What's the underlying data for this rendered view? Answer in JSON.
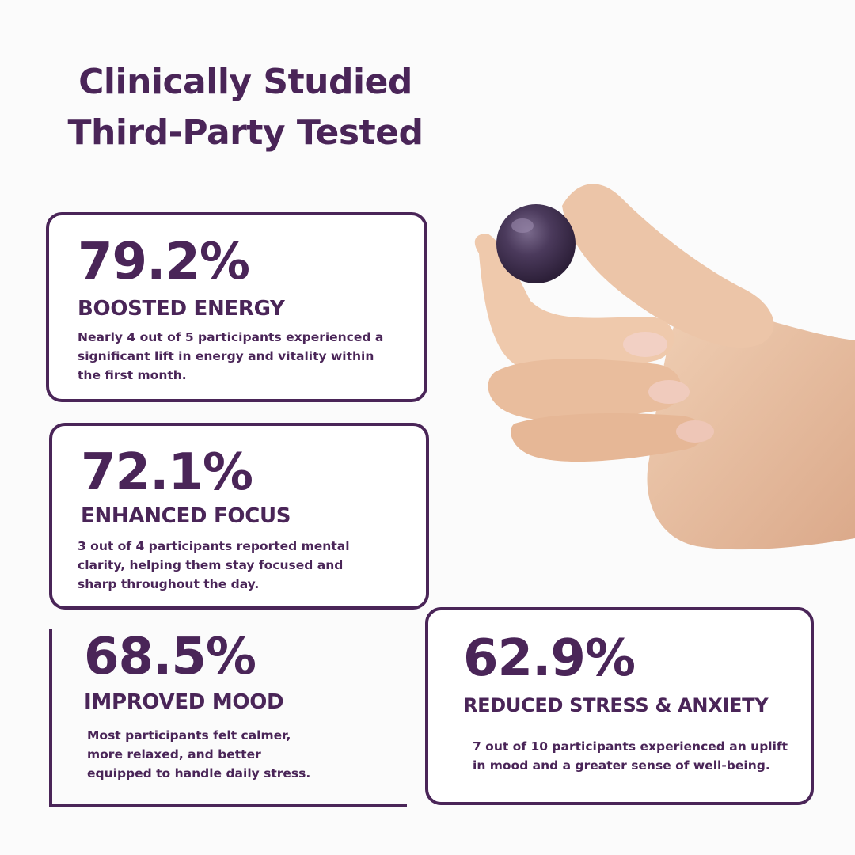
{
  "headline": {
    "line1": "Clinically Studied",
    "line2": "Third-Party Tested"
  },
  "stats": [
    {
      "percent": "79.2%",
      "heading": "BOOSTED ENERGY",
      "desc_lines": [
        "Nearly 4 out of 5 participants experienced a",
        "significant lift in energy and vitality within",
        "the first month."
      ]
    },
    {
      "percent": "72.1%",
      "heading": "ENHANCED FOCUS",
      "desc_lines": [
        "3 out of 4 participants reported mental",
        "clarity, helping them stay focused and",
        "sharp throughout the day."
      ]
    },
    {
      "percent": "68.5%",
      "heading": "IMPROVED MOOD",
      "desc_lines": [
        "Most participants felt calmer,",
        "more relaxed, and better",
        "equipped to handle daily stress."
      ]
    },
    {
      "percent": "62.9%",
      "heading": "REDUCED STRESS & ANXIETY",
      "desc_lines": [
        "7 out of 10 participants experienced an uplift",
        "in mood and a greater sense of well-being."
      ]
    }
  ],
  "colors": {
    "brand": "#4a2558",
    "background": "#fbfbfb",
    "gummy": "#4b3a5c",
    "skin": "#e8c1a2"
  },
  "image": {
    "subject": "hand-holding-gummy"
  }
}
